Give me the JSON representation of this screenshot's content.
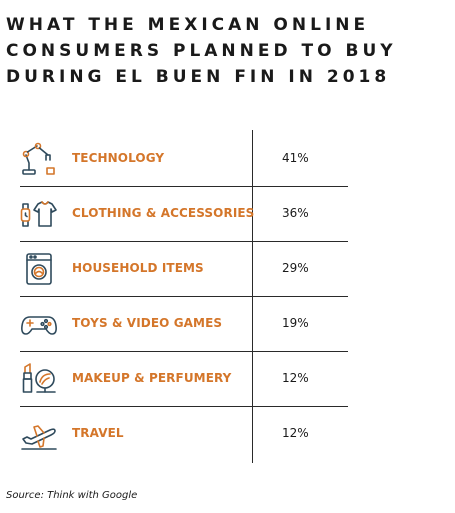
{
  "chart_data": {
    "type": "table",
    "title_lines": [
      "WHAT THE MEXICAN ONLINE",
      "CONSUMERS PLANNED TO BUY",
      "DURING EL BUEN FIN IN 2018"
    ],
    "rows": [
      {
        "category": "TECHNOLOGY",
        "value": 41,
        "value_label": "41%",
        "icon": "robot-arm-icon"
      },
      {
        "category": "CLOTHING & ACCESSORIES",
        "value": 36,
        "value_label": "36%",
        "icon": "watch-shirt-icon"
      },
      {
        "category": "HOUSEHOLD ITEMS",
        "value": 29,
        "value_label": "29%",
        "icon": "washing-machine-icon"
      },
      {
        "category": "TOYS & VIDEO GAMES",
        "value": 19,
        "value_label": "19%",
        "icon": "gamepad-icon"
      },
      {
        "category": "MAKEUP & PERFUMERY",
        "value": 12,
        "value_label": "12%",
        "icon": "lipstick-mirror-icon"
      },
      {
        "category": "TRAVEL",
        "value": 12,
        "value_label": "12%",
        "icon": "airplane-icon"
      }
    ],
    "source": "Source: Think with Google"
  },
  "colors": {
    "label": "#d4762a",
    "icon_accent": "#d4762a",
    "icon_stroke": "#2f4a5c",
    "text": "#1a1a1a",
    "rule": "#2a2a2a"
  }
}
